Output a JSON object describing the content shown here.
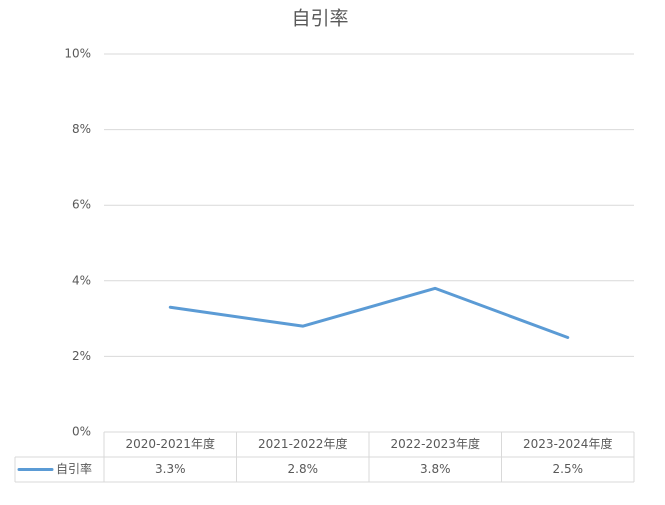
{
  "chart_data": {
    "type": "line",
    "title": "自引率",
    "categories": [
      "2020-2021年度",
      "2021-2022年度",
      "2022-2023年度",
      "2023-2024年度"
    ],
    "series": [
      {
        "name": "自引率",
        "color": "#5b9bd5",
        "values": [
          3.3,
          2.8,
          3.8,
          2.5
        ],
        "value_labels": [
          "3.3%",
          "2.8%",
          "3.8%",
          "2.5%"
        ]
      }
    ],
    "ylim": [
      0,
      10
    ],
    "yticks": [
      {
        "value": 0,
        "label": "0%"
      },
      {
        "value": 2,
        "label": "2%"
      },
      {
        "value": 4,
        "label": "4%"
      },
      {
        "value": 6,
        "label": "6%"
      },
      {
        "value": 8,
        "label": "8%"
      },
      {
        "value": 10,
        "label": "10%"
      }
    ],
    "grid": true
  }
}
